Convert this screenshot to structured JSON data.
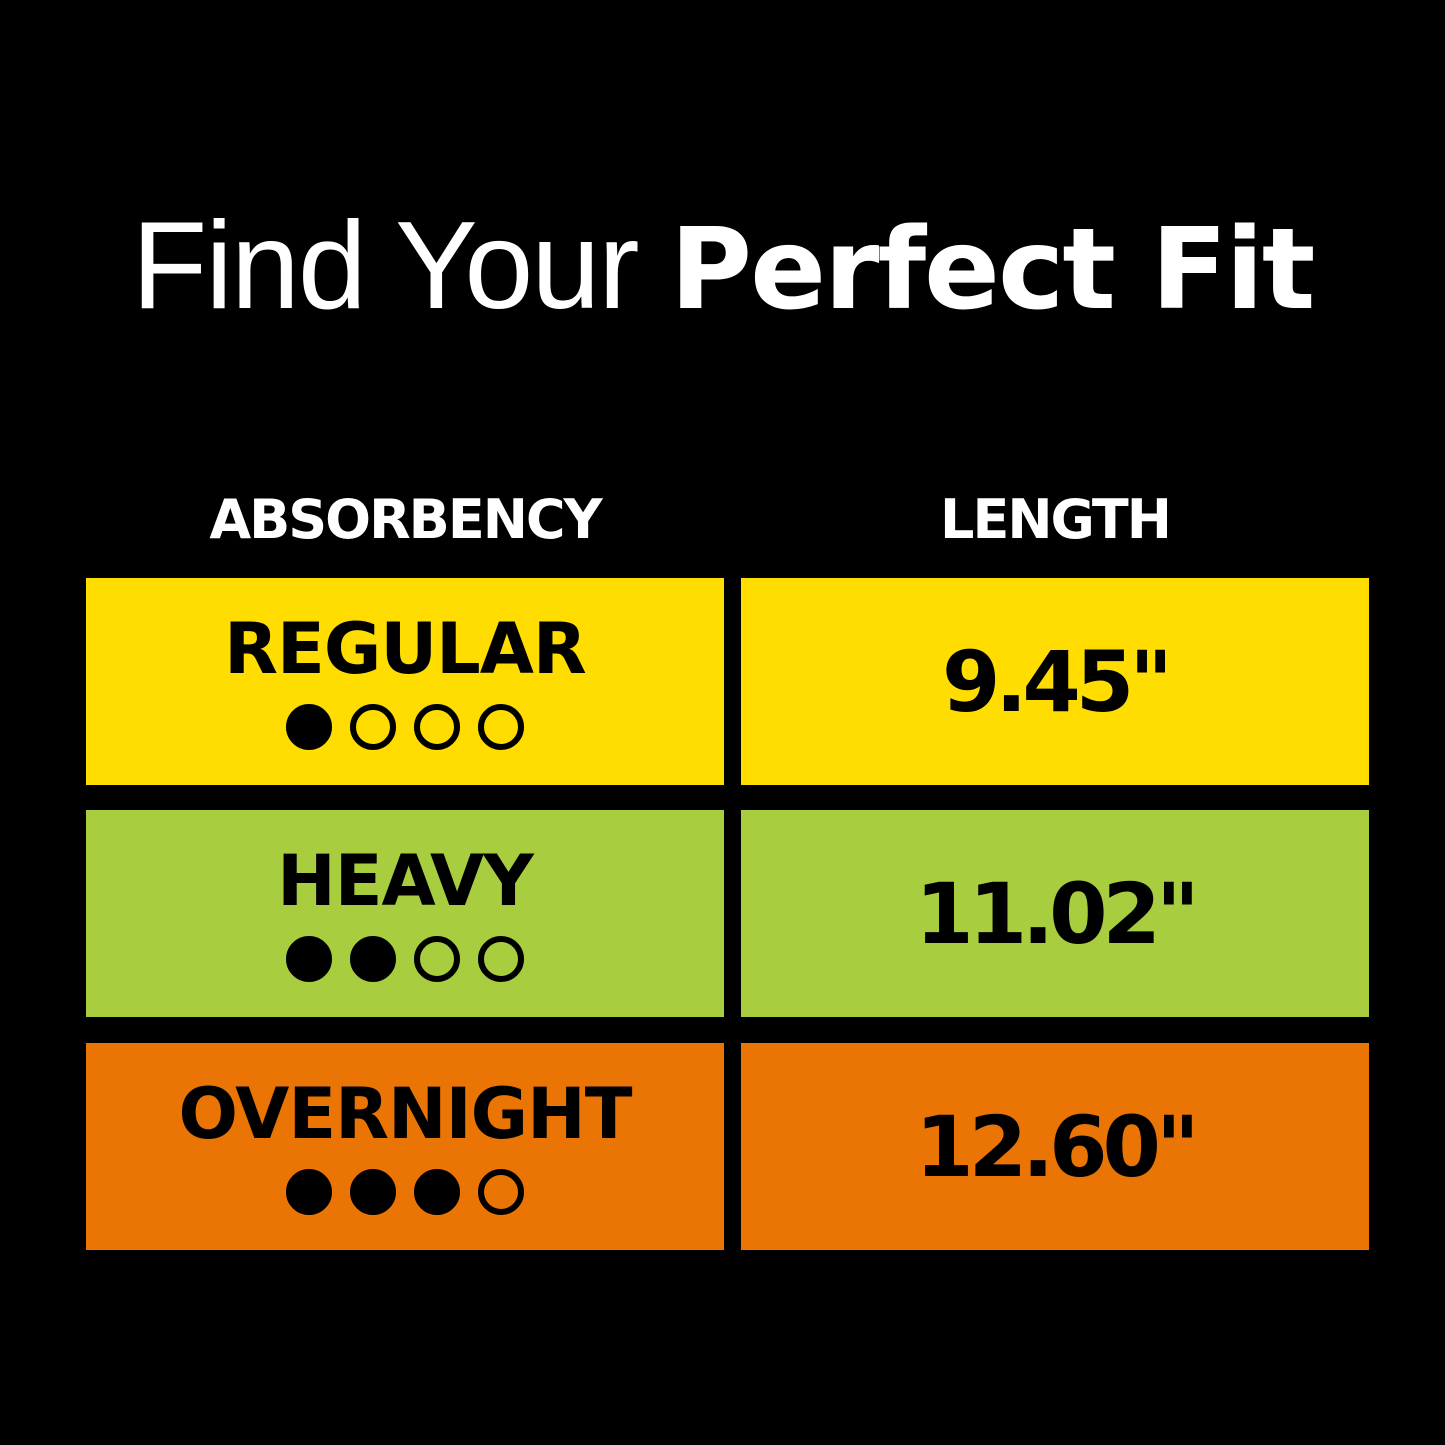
{
  "title": {
    "light": "Find Your ",
    "bold": "Perfect Fit"
  },
  "headers": {
    "absorbency": "ABSORBENCY",
    "length": "LENGTH"
  },
  "rows": [
    {
      "level": "REGULAR",
      "drops_filled": 1,
      "drops_total": 4,
      "length": "9.45\"",
      "color": "#FFDD00"
    },
    {
      "level": "HEAVY",
      "drops_filled": 2,
      "drops_total": 4,
      "length": "11.02\"",
      "color": "#A8CE3F"
    },
    {
      "level": "OVERNIGHT",
      "drops_filled": 3,
      "drops_total": 4,
      "length": "12.60\"",
      "color": "#EA7404"
    }
  ]
}
